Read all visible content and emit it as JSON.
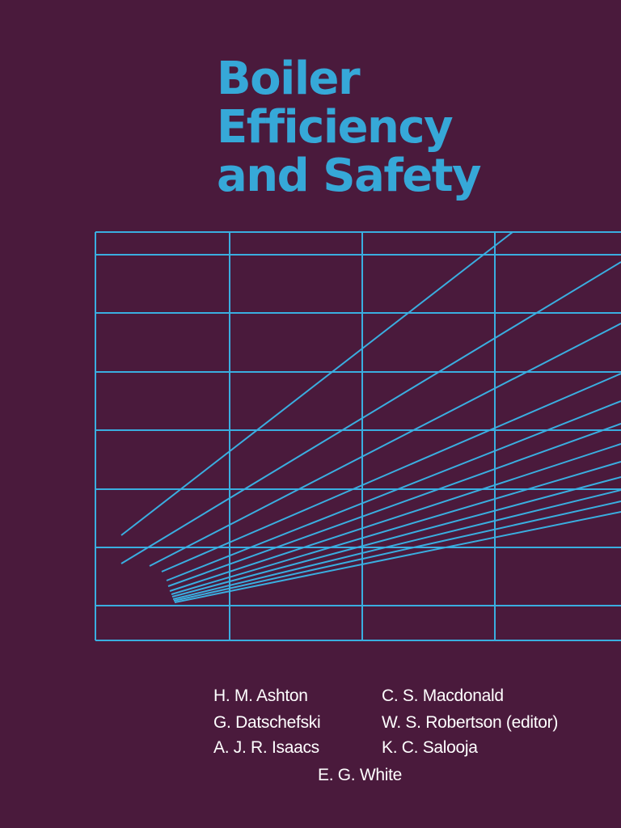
{
  "cover": {
    "title_lines": [
      "Boiler",
      "Efficiency",
      "and Safety"
    ],
    "colors": {
      "background": "#4a1a3c",
      "accent": "#36a8d8",
      "text": "#ffffff"
    }
  },
  "authors": [
    "H. M. Ashton",
    "C. S. Macdonald",
    "G. Datschefski",
    "W. S. Robertson (editor)",
    "A. J. R. Isaacs",
    "K. C. Salooja",
    "E. G. White"
  ]
}
